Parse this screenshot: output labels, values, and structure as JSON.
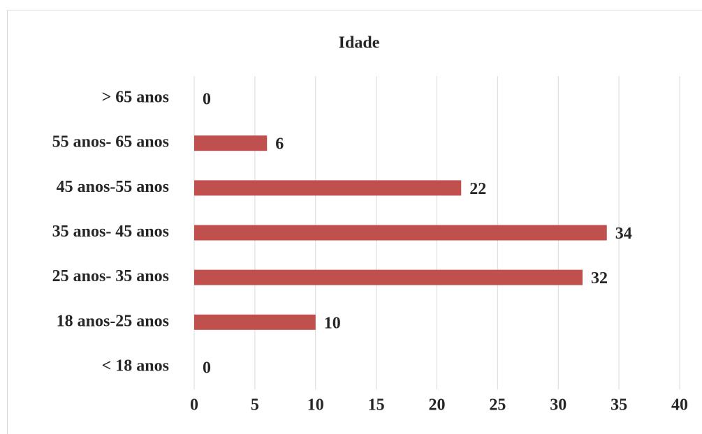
{
  "chart_data": {
    "type": "hbar",
    "title": "Idade",
    "categories": [
      "> 65 anos",
      "55 anos- 65 anos",
      "45 anos-55 anos",
      "35 anos- 45 anos",
      "25 anos- 35 anos",
      "18 anos-25 anos",
      "< 18 anos"
    ],
    "values": [
      0,
      6,
      22,
      34,
      32,
      10,
      0
    ],
    "color": "#c0504d",
    "xlim": [
      0,
      40
    ],
    "xticks": [
      0,
      5,
      10,
      15,
      20,
      25,
      30,
      35,
      40
    ],
    "grid": true
  }
}
